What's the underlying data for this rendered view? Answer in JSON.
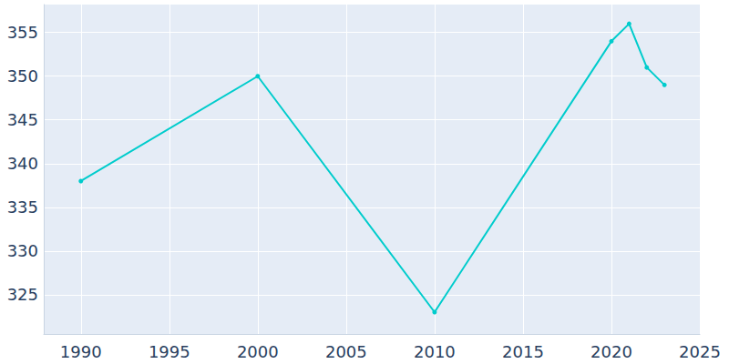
{
  "chart_data": {
    "type": "line",
    "x": [
      1990,
      2000,
      2010,
      2020,
      2021,
      2022,
      2023
    ],
    "values": [
      338,
      350,
      323,
      354,
      356,
      351,
      349
    ],
    "color": "#00cccc",
    "marker": "circle",
    "xlim": [
      1987.9,
      2025
    ],
    "xticks": [
      1990,
      1995,
      2000,
      2005,
      2010,
      2015,
      2020,
      2025
    ],
    "ylim": [
      320.5,
      358.2
    ],
    "yticks": [
      325,
      330,
      335,
      340,
      345,
      350,
      355
    ],
    "grid": true
  }
}
